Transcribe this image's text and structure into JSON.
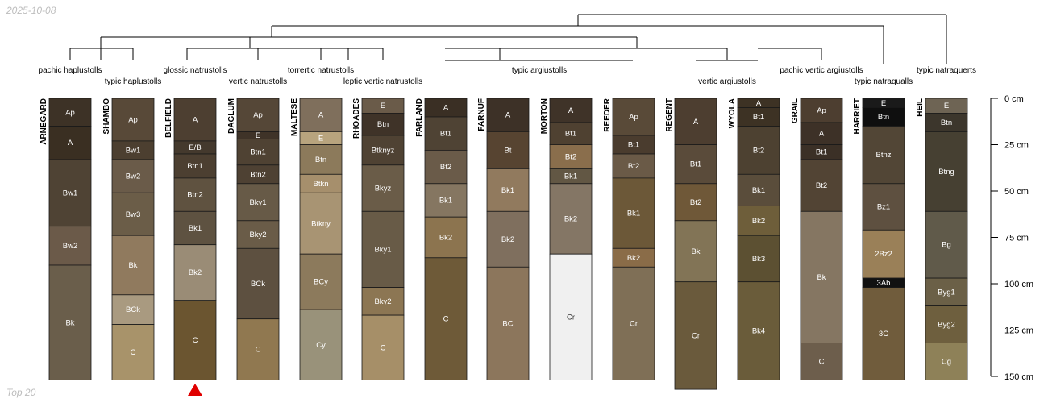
{
  "header": {
    "stamp": "2025-10-08"
  },
  "footer": {
    "note": "Top 20"
  },
  "chart_data": {
    "type": "soil-profile-sketch",
    "depth_unit": "cm",
    "ylim": [
      0,
      150
    ],
    "axis_ticks": [
      {
        "depth": 0,
        "label": "0 cm"
      },
      {
        "depth": 25,
        "label": "25 cm"
      },
      {
        "depth": 50,
        "label": "50 cm"
      },
      {
        "depth": 75,
        "label": "75 cm"
      },
      {
        "depth": 100,
        "label": "100 cm"
      },
      {
        "depth": 125,
        "label": "125 cm"
      },
      {
        "depth": 150,
        "label": "150 cm"
      }
    ],
    "highlight_marker": {
      "profile": "BELFIELD",
      "color": "#e00000"
    },
    "profiles": [
      {
        "name": "ARNEGARD",
        "horizons": [
          {
            "name": "Ap",
            "top": 0,
            "bottom": 15,
            "color": "#3d3226"
          },
          {
            "name": "A",
            "top": 15,
            "bottom": 33,
            "color": "#3a2f22"
          },
          {
            "name": "Bw1",
            "top": 33,
            "bottom": 69,
            "color": "#4f4334"
          },
          {
            "name": "Bw2",
            "top": 69,
            "bottom": 90,
            "color": "#6b5a49"
          },
          {
            "name": "Bk",
            "top": 90,
            "bottom": 152,
            "color": "#6a5e4b"
          }
        ]
      },
      {
        "name": "SHAMBO",
        "horizons": [
          {
            "name": "Ap",
            "top": 0,
            "bottom": 23,
            "color": "#584938"
          },
          {
            "name": "Bw1",
            "top": 23,
            "bottom": 33,
            "color": "#4c3f30"
          },
          {
            "name": "Bw2",
            "top": 33,
            "bottom": 51,
            "color": "#6a5b49"
          },
          {
            "name": "Bw3",
            "top": 51,
            "bottom": 74,
            "color": "#6b5d48"
          },
          {
            "name": "Bk",
            "top": 74,
            "bottom": 106,
            "color": "#907a5e"
          },
          {
            "name": "BCk",
            "top": 106,
            "bottom": 122,
            "color": "#a99a80"
          },
          {
            "name": "C",
            "top": 122,
            "bottom": 152,
            "color": "#a8936a"
          }
        ]
      },
      {
        "name": "BELFIELD",
        "horizons": [
          {
            "name": "A",
            "top": 0,
            "bottom": 23,
            "color": "#4d3f31"
          },
          {
            "name": "E/B",
            "top": 23,
            "bottom": 30,
            "color": "#44392d"
          },
          {
            "name": "Btn1",
            "top": 30,
            "bottom": 43,
            "color": "#4c3f31"
          },
          {
            "name": "Btn2",
            "top": 43,
            "bottom": 61,
            "color": "#5f5240"
          },
          {
            "name": "Bk1",
            "top": 61,
            "bottom": 79,
            "color": "#5e5241"
          },
          {
            "name": "Bk2",
            "top": 79,
            "bottom": 109,
            "color": "#9a8c76"
          },
          {
            "name": "C",
            "top": 109,
            "bottom": 152,
            "color": "#6b5530"
          }
        ]
      },
      {
        "name": "DAGLUM",
        "horizons": [
          {
            "name": "Ap",
            "top": 0,
            "bottom": 18,
            "color": "#554737"
          },
          {
            "name": "E",
            "top": 18,
            "bottom": 22,
            "color": "#3f3328"
          },
          {
            "name": "Btn1",
            "top": 22,
            "bottom": 36,
            "color": "#4f4233"
          },
          {
            "name": "Btn2",
            "top": 36,
            "bottom": 46,
            "color": "#4e4133"
          },
          {
            "name": "Bky1",
            "top": 46,
            "bottom": 66,
            "color": "#675a47"
          },
          {
            "name": "Bky2",
            "top": 66,
            "bottom": 81,
            "color": "#6a5c48"
          },
          {
            "name": "BCk",
            "top": 81,
            "bottom": 119,
            "color": "#5d5040"
          },
          {
            "name": "C",
            "top": 119,
            "bottom": 152,
            "color": "#907850"
          }
        ]
      },
      {
        "name": "MALTESE",
        "horizons": [
          {
            "name": "A",
            "top": 0,
            "bottom": 18,
            "color": "#7f6f5c"
          },
          {
            "name": "E",
            "top": 18,
            "bottom": 25,
            "color": "#b8a47e"
          },
          {
            "name": "Btn",
            "top": 25,
            "bottom": 41,
            "color": "#8c7a5b"
          },
          {
            "name": "Btkn",
            "top": 41,
            "bottom": 51,
            "color": "#a68f6c"
          },
          {
            "name": "Btkny",
            "top": 51,
            "bottom": 84,
            "color": "#a89473"
          },
          {
            "name": "BCy",
            "top": 84,
            "bottom": 114,
            "color": "#8c7a5c"
          },
          {
            "name": "Cy",
            "top": 114,
            "bottom": 152,
            "color": "#99927a"
          }
        ]
      },
      {
        "name": "RHOADES",
        "horizons": [
          {
            "name": "E",
            "top": 0,
            "bottom": 8,
            "color": "#6a5b49"
          },
          {
            "name": "Btn",
            "top": 8,
            "bottom": 20,
            "color": "#3f3328"
          },
          {
            "name": "Btknyz",
            "top": 20,
            "bottom": 36,
            "color": "#4f4233"
          },
          {
            "name": "Bkyz",
            "top": 36,
            "bottom": 61,
            "color": "#6a5c48"
          },
          {
            "name": "Bky1",
            "top": 61,
            "bottom": 102,
            "color": "#685b47"
          },
          {
            "name": "Bky2",
            "top": 102,
            "bottom": 117,
            "color": "#8c7653"
          },
          {
            "name": "C",
            "top": 117,
            "bottom": 152,
            "color": "#a68f68"
          }
        ]
      },
      {
        "name": "FARLAND",
        "horizons": [
          {
            "name": "A",
            "top": 0,
            "bottom": 10,
            "color": "#3a2f24"
          },
          {
            "name": "Bt1",
            "top": 10,
            "bottom": 28,
            "color": "#4f4334"
          },
          {
            "name": "Bt2",
            "top": 28,
            "bottom": 46,
            "color": "#6a5b49"
          },
          {
            "name": "Bk1",
            "top": 46,
            "bottom": 64,
            "color": "#857661"
          },
          {
            "name": "Bk2",
            "top": 64,
            "bottom": 86,
            "color": "#8c744f"
          },
          {
            "name": "C",
            "top": 86,
            "bottom": 152,
            "color": "#6e5a38"
          }
        ]
      },
      {
        "name": "FARNUF",
        "horizons": [
          {
            "name": "A",
            "top": 0,
            "bottom": 18,
            "color": "#3d3127"
          },
          {
            "name": "Bt",
            "top": 18,
            "bottom": 38,
            "color": "#574431"
          },
          {
            "name": "Bk1",
            "top": 38,
            "bottom": 61,
            "color": "#917a5e"
          },
          {
            "name": "Bk2",
            "top": 61,
            "bottom": 91,
            "color": "#7f6f5e"
          },
          {
            "name": "BC",
            "top": 91,
            "bottom": 152,
            "color": "#8c765c"
          }
        ]
      },
      {
        "name": "MORTON",
        "horizons": [
          {
            "name": "A",
            "top": 0,
            "bottom": 13,
            "color": "#3f3328"
          },
          {
            "name": "Bt1",
            "top": 13,
            "bottom": 25,
            "color": "#4f4131"
          },
          {
            "name": "Bt2",
            "top": 25,
            "bottom": 38,
            "color": "#8a6e4c"
          },
          {
            "name": "Bk1",
            "top": 38,
            "bottom": 46,
            "color": "#625744"
          },
          {
            "name": "Bk2",
            "top": 46,
            "bottom": 84,
            "color": "#847665"
          },
          {
            "name": "Cr",
            "top": 84,
            "bottom": 152,
            "color": "#f0f0f0"
          }
        ]
      },
      {
        "name": "REEDER",
        "horizons": [
          {
            "name": "Ap",
            "top": 0,
            "bottom": 20,
            "color": "#594a38"
          },
          {
            "name": "Bt1",
            "top": 20,
            "bottom": 30,
            "color": "#4a3c2e"
          },
          {
            "name": "Bt2",
            "top": 30,
            "bottom": 43,
            "color": "#6a5a47"
          },
          {
            "name": "Bk1",
            "top": 43,
            "bottom": 81,
            "color": "#6c5838"
          },
          {
            "name": "Bk2",
            "top": 81,
            "bottom": 91,
            "color": "#8a6c48"
          },
          {
            "name": "Cr",
            "top": 91,
            "bottom": 152,
            "color": "#7f6f56"
          }
        ]
      },
      {
        "name": "REGENT",
        "horizons": [
          {
            "name": "A",
            "top": 0,
            "bottom": 25,
            "color": "#4d3e30"
          },
          {
            "name": "Bt1",
            "top": 25,
            "bottom": 46,
            "color": "#5a4b3a"
          },
          {
            "name": "Bt2",
            "top": 46,
            "bottom": 66,
            "color": "#6f5838"
          },
          {
            "name": "Bk",
            "top": 66,
            "bottom": 99,
            "color": "#827456"
          },
          {
            "name": "Cr",
            "top": 99,
            "bottom": 157,
            "color": "#6a5a3c"
          }
        ]
      },
      {
        "name": "WYOLA",
        "horizons": [
          {
            "name": "A",
            "top": 0,
            "bottom": 5,
            "color": "#3d3224"
          },
          {
            "name": "Bt1",
            "top": 5,
            "bottom": 15,
            "color": "#3d3224"
          },
          {
            "name": "Bt2",
            "top": 15,
            "bottom": 41,
            "color": "#4d4131"
          },
          {
            "name": "Bk1",
            "top": 41,
            "bottom": 58,
            "color": "#5a4d3b"
          },
          {
            "name": "Bk2",
            "top": 58,
            "bottom": 74,
            "color": "#6e5e3a"
          },
          {
            "name": "Bk3",
            "top": 74,
            "bottom": 99,
            "color": "#5c5032"
          },
          {
            "name": "Bk4",
            "top": 99,
            "bottom": 152,
            "color": "#6a5c3a"
          }
        ]
      },
      {
        "name": "GRAIL",
        "horizons": [
          {
            "name": "Ap",
            "top": 0,
            "bottom": 13,
            "color": "#4d3e30"
          },
          {
            "name": "A",
            "top": 13,
            "bottom": 25,
            "color": "#3d3127"
          },
          {
            "name": "Bt1",
            "top": 25,
            "bottom": 33,
            "color": "#3b3026"
          },
          {
            "name": "Bt2",
            "top": 33,
            "bottom": 61,
            "color": "#524434"
          },
          {
            "name": "Bk",
            "top": 61,
            "bottom": 132,
            "color": "#857662"
          },
          {
            "name": "C",
            "top": 132,
            "bottom": 152,
            "color": "#6d5e4c"
          }
        ]
      },
      {
        "name": "HARRIET",
        "horizons": [
          {
            "name": "E",
            "top": 0,
            "bottom": 5,
            "color": "#1a1a1a"
          },
          {
            "name": "Btn",
            "top": 5,
            "bottom": 15,
            "color": "#0f0f0f"
          },
          {
            "name": "Btnz",
            "top": 15,
            "bottom": 46,
            "color": "#524636"
          },
          {
            "name": "Bz1",
            "top": 46,
            "bottom": 71,
            "color": "#5e5040"
          },
          {
            "name": "2Bz2",
            "top": 71,
            "bottom": 97,
            "color": "#9a8058"
          },
          {
            "name": "3Ab",
            "top": 97,
            "bottom": 102,
            "color": "#111111"
          },
          {
            "name": "3C",
            "top": 102,
            "bottom": 152,
            "color": "#705c3c"
          }
        ]
      },
      {
        "name": "HEIL",
        "horizons": [
          {
            "name": "E",
            "top": 0,
            "bottom": 8,
            "color": "#6e6454"
          },
          {
            "name": "Btn",
            "top": 8,
            "bottom": 18,
            "color": "#3c362c"
          },
          {
            "name": "Btng",
            "top": 18,
            "bottom": 61,
            "color": "#464032"
          },
          {
            "name": "Bg",
            "top": 61,
            "bottom": 97,
            "color": "#605a4a"
          },
          {
            "name": "Byg1",
            "top": 97,
            "bottom": 112,
            "color": "#6b6047"
          },
          {
            "name": "Byg2",
            "top": 112,
            "bottom": 132,
            "color": "#6e5f3e"
          },
          {
            "name": "Cg",
            "top": 132,
            "bottom": 152,
            "color": "#8e8158"
          }
        ]
      }
    ],
    "taxa_labels": [
      {
        "text": "pachic haplustolls",
        "anchor": "ARNEGARD"
      },
      {
        "text": "typic haplustolls",
        "anchor": "SHAMBO"
      },
      {
        "text": "glossic natrustolls",
        "anchor": "BELFIELD"
      },
      {
        "text": "vertic natrustolls",
        "anchor": "DAGLUM"
      },
      {
        "text": "torrertic natrustolls",
        "anchor": "MALTESE"
      },
      {
        "text": "leptic vertic natrustolls",
        "anchor": "RHOADES"
      },
      {
        "text": "typic argiustolls",
        "anchor": "FARNUF"
      },
      {
        "text": "vertic argiustolls",
        "anchor": "WYOLA"
      },
      {
        "text": "pachic vertic argiustolls",
        "anchor": "GRAIL"
      },
      {
        "text": "typic natraqualls",
        "anchor": "HARRIET"
      },
      {
        "text": "typic natraquerts",
        "anchor": "HEIL"
      }
    ]
  }
}
